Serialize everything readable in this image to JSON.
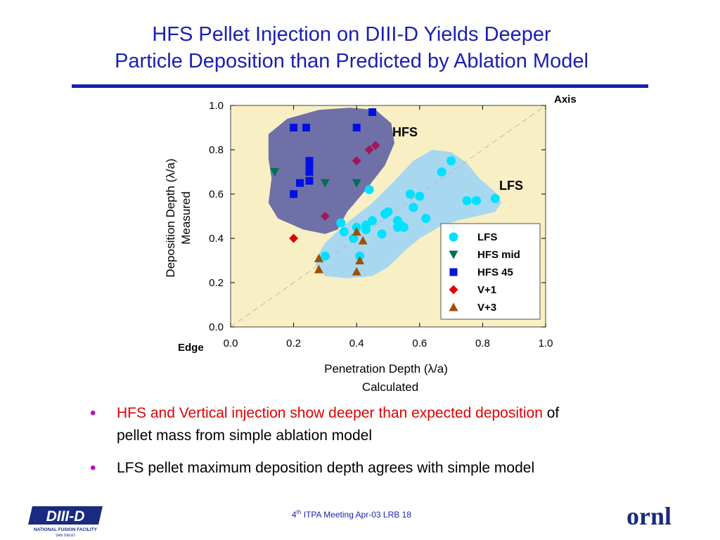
{
  "slide": {
    "title_line1": "HFS Pellet Injection on DIII-D Yields Deeper",
    "title_line2": "Particle Deposition than Predicted by Ablation Model",
    "bullets": [
      {
        "highlight": "HFS and Vertical injection show deeper than expected deposition",
        "rest_line1": " of",
        "rest_line2": "pellet mass from simple ablation model"
      },
      {
        "text": "LFS pellet maximum deposition depth agrees with simple model"
      }
    ],
    "footer": {
      "sup": "th",
      "pre": "4",
      "text": " ITPA Meeting  Apr-03   LRB     18"
    },
    "logo_left": {
      "main": "DIII-D",
      "sub1": "NATIONAL FUSION FACILITY",
      "sub2": "SAN DIEGO"
    },
    "logo_right": {
      "text": "ornl"
    },
    "colors": {
      "title": "#1a1fb0",
      "bullet": "#c000c0",
      "highlight": "#e00000",
      "plot_bg": "#f8f0c4"
    }
  },
  "chart_data": {
    "type": "scatter",
    "xlabel_line1": "Penetration Depth (λ/a)",
    "xlabel_line2": "Calculated",
    "ylabel_line1": "Deposition Depth (λ/a)",
    "ylabel_line2": "Measured",
    "xlim": [
      0,
      1
    ],
    "ylim": [
      0,
      1
    ],
    "xticks": [
      "0.0",
      "0.2",
      "0.4",
      "0.6",
      "0.8",
      "1.0"
    ],
    "yticks": [
      "0.0",
      "0.2",
      "0.4",
      "0.6",
      "0.8",
      "1.0"
    ],
    "annotations": {
      "axis": "Axis",
      "edge": "Edge",
      "hfs_region": "HFS",
      "lfs_region": "LFS"
    },
    "regions": [
      {
        "name": "HFS",
        "color": "#7070a8",
        "outline": [
          [
            0.12,
            0.87
          ],
          [
            0.18,
            0.94
          ],
          [
            0.28,
            0.98
          ],
          [
            0.38,
            0.99
          ],
          [
            0.46,
            0.98
          ],
          [
            0.51,
            0.92
          ],
          [
            0.52,
            0.83
          ],
          [
            0.49,
            0.73
          ],
          [
            0.43,
            0.62
          ],
          [
            0.37,
            0.52
          ],
          [
            0.34,
            0.44
          ],
          [
            0.3,
            0.42
          ],
          [
            0.23,
            0.44
          ],
          [
            0.15,
            0.49
          ],
          [
            0.12,
            0.56
          ],
          [
            0.13,
            0.67
          ],
          [
            0.12,
            0.76
          ]
        ]
      },
      {
        "name": "LFS",
        "color": "#a8d8f0",
        "outline": [
          [
            0.36,
            0.46
          ],
          [
            0.45,
            0.56
          ],
          [
            0.52,
            0.66
          ],
          [
            0.58,
            0.75
          ],
          [
            0.64,
            0.8
          ],
          [
            0.7,
            0.79
          ],
          [
            0.75,
            0.74
          ],
          [
            0.79,
            0.67
          ],
          [
            0.84,
            0.61
          ],
          [
            0.86,
            0.56
          ],
          [
            0.84,
            0.52
          ],
          [
            0.78,
            0.5
          ],
          [
            0.72,
            0.48
          ],
          [
            0.66,
            0.45
          ],
          [
            0.6,
            0.4
          ],
          [
            0.55,
            0.34
          ],
          [
            0.5,
            0.27
          ],
          [
            0.45,
            0.23
          ],
          [
            0.37,
            0.22
          ],
          [
            0.3,
            0.23
          ],
          [
            0.27,
            0.28
          ],
          [
            0.28,
            0.33
          ],
          [
            0.3,
            0.38
          ]
        ]
      }
    ],
    "legend_position": "bottom-right",
    "series": [
      {
        "name": "LFS",
        "marker": "circle",
        "color": "#00e0ff",
        "points": [
          [
            0.7,
            0.75
          ],
          [
            0.67,
            0.7
          ],
          [
            0.57,
            0.6
          ],
          [
            0.6,
            0.59
          ],
          [
            0.58,
            0.54
          ],
          [
            0.62,
            0.49
          ],
          [
            0.44,
            0.62
          ],
          [
            0.5,
            0.52
          ],
          [
            0.49,
            0.51
          ],
          [
            0.45,
            0.48
          ],
          [
            0.43,
            0.46
          ],
          [
            0.4,
            0.45
          ],
          [
            0.36,
            0.43
          ],
          [
            0.39,
            0.4
          ],
          [
            0.35,
            0.47
          ],
          [
            0.43,
            0.44
          ],
          [
            0.48,
            0.42
          ],
          [
            0.53,
            0.45
          ],
          [
            0.54,
            0.46
          ],
          [
            0.53,
            0.48
          ],
          [
            0.55,
            0.45
          ],
          [
            0.75,
            0.57
          ],
          [
            0.78,
            0.57
          ],
          [
            0.84,
            0.58
          ],
          [
            0.3,
            0.32
          ],
          [
            0.41,
            0.32
          ]
        ]
      },
      {
        "name": "HFS mid",
        "marker": "triangle-down",
        "color": "#007050",
        "points": [
          [
            0.14,
            0.7
          ],
          [
            0.3,
            0.65
          ],
          [
            0.4,
            0.65
          ]
        ]
      },
      {
        "name": "HFS 45",
        "marker": "square",
        "color": "#0010e0",
        "points": [
          [
            0.2,
            0.9
          ],
          [
            0.24,
            0.9
          ],
          [
            0.4,
            0.9
          ],
          [
            0.45,
            0.97
          ],
          [
            0.25,
            0.75
          ],
          [
            0.25,
            0.73
          ],
          [
            0.25,
            0.7
          ],
          [
            0.25,
            0.66
          ],
          [
            0.22,
            0.65
          ],
          [
            0.2,
            0.6
          ]
        ]
      },
      {
        "name": "V+1",
        "marker": "diamond",
        "color": "#e00000",
        "points": [
          [
            0.2,
            0.4
          ]
        ]
      },
      {
        "name": "V+3",
        "marker": "triangle-up",
        "color": "#a05000",
        "points": [
          [
            0.28,
            0.31
          ],
          [
            0.28,
            0.26
          ],
          [
            0.4,
            0.43
          ],
          [
            0.41,
            0.3
          ],
          [
            0.4,
            0.25
          ],
          [
            0.42,
            0.39
          ]
        ]
      },
      {
        "name": "",
        "marker": "diamond",
        "color": "#a0185a",
        "points": [
          [
            0.46,
            0.82
          ],
          [
            0.44,
            0.8
          ],
          [
            0.4,
            0.75
          ],
          [
            0.3,
            0.5
          ]
        ]
      }
    ]
  }
}
